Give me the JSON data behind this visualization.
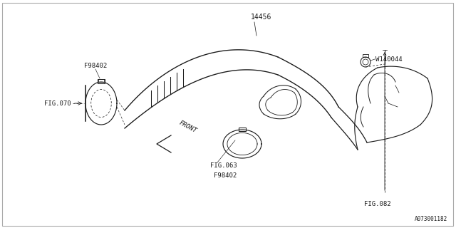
{
  "bg_color": "#ffffff",
  "line_color": "#1a1a1a",
  "text_color": "#1a1a1a",
  "part_number_main": "14456",
  "part_label_F98402_top": "F98402",
  "part_label_FIG070": "FIG.070",
  "part_label_FIG063": "FIG.063",
  "part_label_F98402_bot": "F98402",
  "part_label_W140044": "W140044",
  "part_label_FIG082": "FIG.082",
  "diagram_id": "A073001182",
  "front_label": "FRONT",
  "font_size_labels": 6.5,
  "font_size_diagram_id": 5.5,
  "line_width": 0.75,
  "border_color": "#aaaaaa"
}
